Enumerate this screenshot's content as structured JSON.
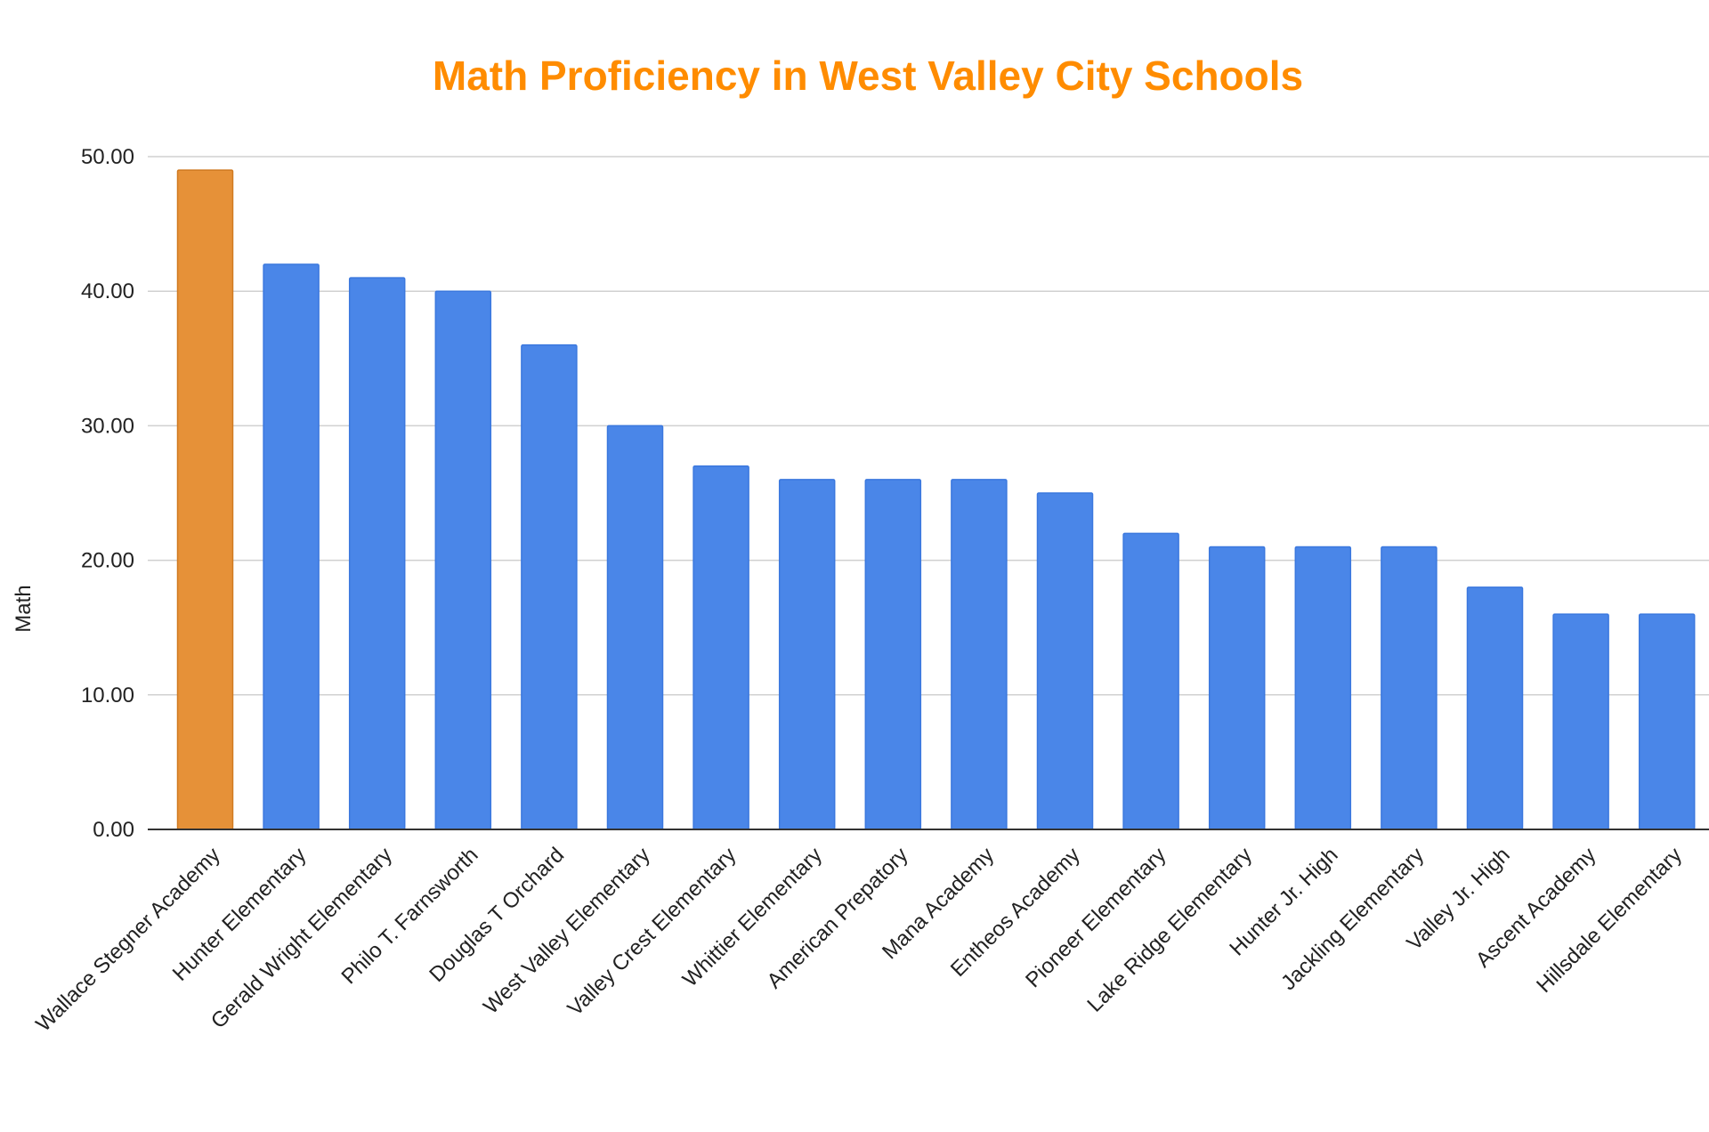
{
  "colors": {
    "title": "#ff8c00",
    "bar": "#4a86e8",
    "highlight_bar": "#e69138",
    "grid": "#d0d0d0",
    "axis": "#333333"
  },
  "chart_data": {
    "type": "bar",
    "title": "Math Proficiency in West Valley City Schools",
    "xlabel": "",
    "ylabel": "Math",
    "ylim": [
      0,
      50
    ],
    "y_ticks": [
      "0.00",
      "10.00",
      "20.00",
      "30.00",
      "40.00",
      "50.00"
    ],
    "y_tick_values": [
      0,
      10,
      20,
      30,
      40,
      50
    ],
    "grid": true,
    "legend": "none",
    "highlighted_category": "Wallace Stegner Academy",
    "categories": [
      "Wallace Stegner Academy",
      "Hunter Elementary",
      "Gerald Wright Elementary",
      "Philo T. Farnsworth",
      "Douglas T Orchard",
      "West Valley Elementary",
      "Valley Crest Elementary",
      "Whittier Elementary",
      "American Prepatory",
      "Mana Academy",
      "Entheos Academy",
      "Pioneer Elementary",
      "Lake Ridge Elementary",
      "Hunter Jr. High",
      "Jackling Elementary",
      "Valley Jr. High",
      "Ascent Academy",
      "Hillsdale Elementary"
    ],
    "values": [
      49,
      42,
      41,
      40,
      36,
      30,
      27,
      26,
      26,
      26,
      25,
      22,
      21,
      21,
      21,
      18,
      16,
      16
    ]
  }
}
